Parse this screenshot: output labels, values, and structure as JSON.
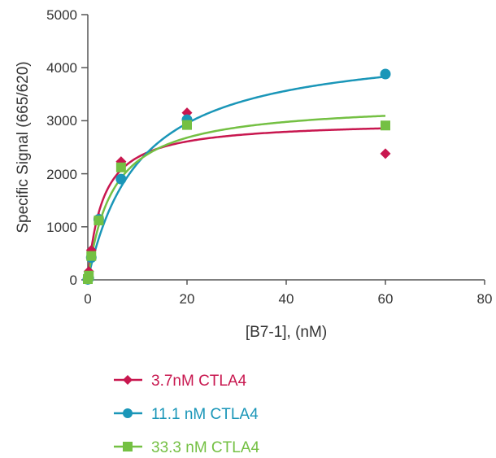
{
  "chart_data": {
    "type": "scatter",
    "xlabel": "[B7-1], (nM)",
    "ylabel": "Specific Signal (665/620)",
    "xlim": [
      0,
      80
    ],
    "ylim": [
      0,
      5000
    ],
    "x_ticks": [
      "0",
      "20",
      "40",
      "60",
      "80"
    ],
    "y_ticks": [
      "0",
      "1000",
      "2000",
      "3000",
      "4000",
      "5000"
    ],
    "grid": false,
    "legend_position": "bottom",
    "series": [
      {
        "name": "3.7nM CTLA4",
        "color": "#c8174f",
        "marker": "diamond",
        "points": [
          [
            0,
            20
          ],
          [
            0.2,
            160
          ],
          [
            0.7,
            560
          ],
          [
            2.2,
            1170
          ],
          [
            6.7,
            2230
          ],
          [
            20,
            3150
          ],
          [
            60,
            2380
          ]
        ],
        "fit": {
          "bmax": 3000,
          "kd": 3.0
        }
      },
      {
        "name": "11.1 nM CTLA4",
        "color": "#1a96b8",
        "marker": "circle",
        "points": [
          [
            0,
            10
          ],
          [
            0.2,
            30
          ],
          [
            0.7,
            420
          ],
          [
            2.2,
            1140
          ],
          [
            6.7,
            1900
          ],
          [
            20,
            3020
          ],
          [
            60,
            3880
          ]
        ],
        "fit": {
          "bmax": 4500,
          "kd": 10.5
        }
      },
      {
        "name": "33.3 nM CTLA4",
        "color": "#74c043",
        "marker": "square",
        "points": [
          [
            0,
            15
          ],
          [
            0.2,
            80
          ],
          [
            0.7,
            450
          ],
          [
            2.2,
            1120
          ],
          [
            6.7,
            2120
          ],
          [
            20,
            2920
          ],
          [
            60,
            2910
          ]
        ],
        "fit": {
          "bmax": 3350,
          "kd": 5.0
        }
      }
    ]
  }
}
